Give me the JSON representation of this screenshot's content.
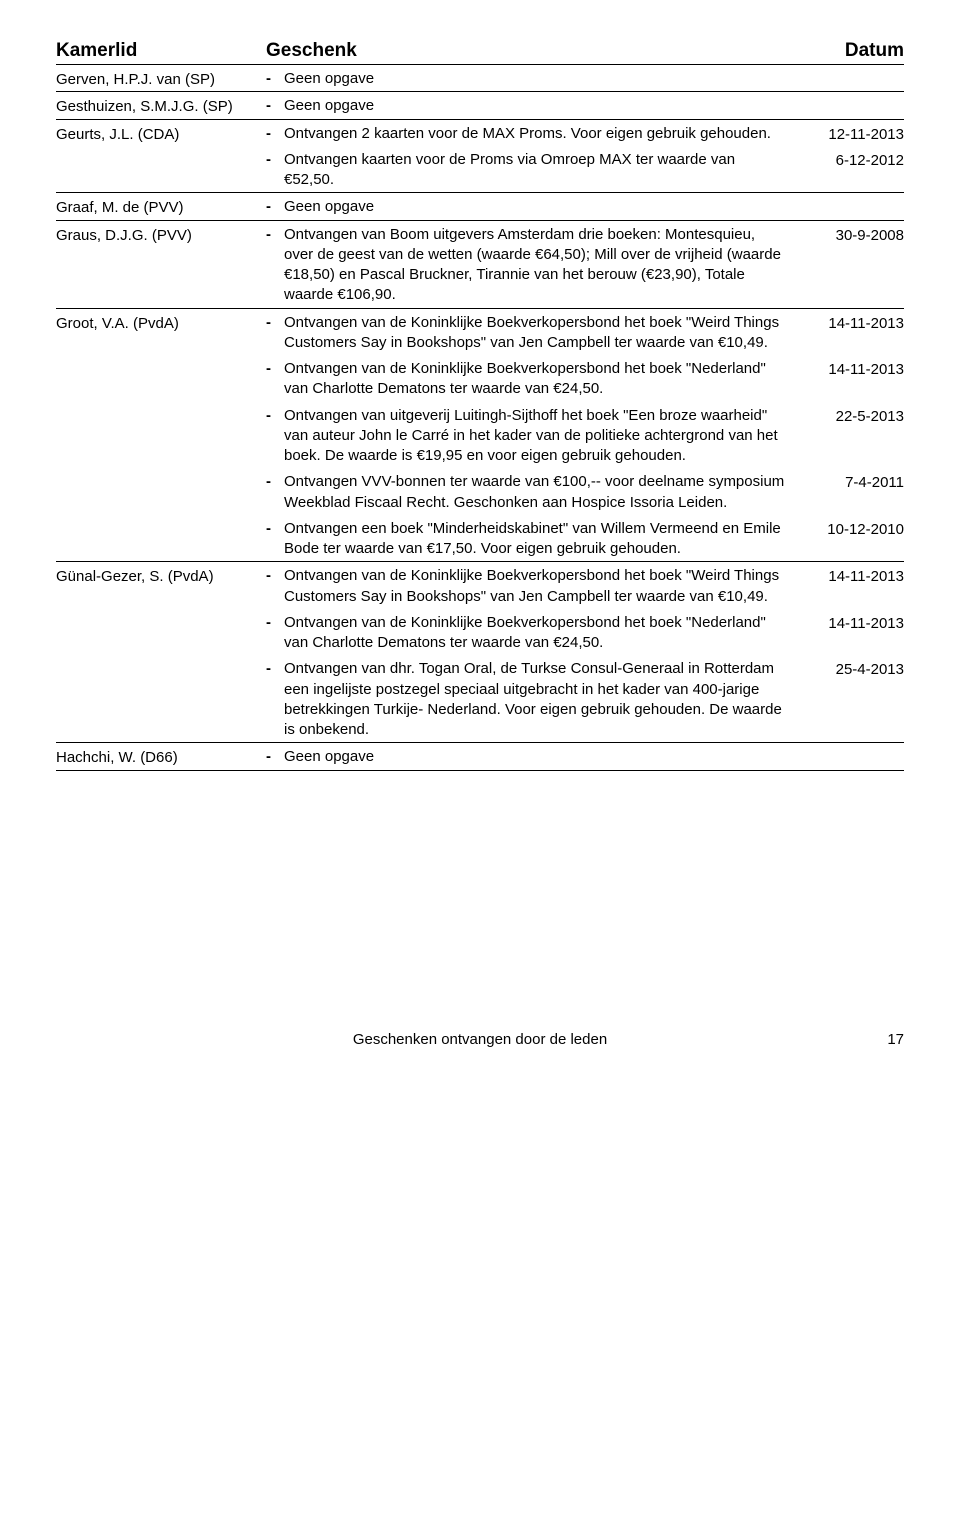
{
  "header": {
    "kamerlid": "Kamerlid",
    "geschenk": "Geschenk",
    "datum": "Datum"
  },
  "geen_opgave": "Geen opgave",
  "members": [
    {
      "name": "Gerven, H.P.J. van (SP)",
      "gifts": [
        {
          "text": "Geen opgave",
          "date": ""
        }
      ]
    },
    {
      "name": "Gesthuizen, S.M.J.G. (SP)",
      "gifts": [
        {
          "text": "Geen opgave",
          "date": ""
        }
      ]
    },
    {
      "name": "Geurts, J.L. (CDA)",
      "gifts": [
        {
          "text": "Ontvangen 2 kaarten voor de MAX Proms. Voor eigen gebruik gehouden.",
          "date": "12-11-2013"
        },
        {
          "text": "Ontvangen kaarten voor de Proms via Omroep MAX ter waarde van €52,50.",
          "date": "6-12-2012"
        }
      ]
    },
    {
      "name": "Graaf, M. de (PVV)",
      "gifts": [
        {
          "text": "Geen opgave",
          "date": ""
        }
      ]
    },
    {
      "name": "Graus, D.J.G. (PVV)",
      "gifts": [
        {
          "text": "Ontvangen van Boom uitgevers Amsterdam drie boeken: Montesquieu, over de geest van de wetten (waarde €64,50); Mill over de vrijheid (waarde €18,50) en Pascal Bruckner, Tirannie van het berouw (€23,90), Totale waarde €106,90.",
          "date": "30-9-2008"
        }
      ]
    },
    {
      "name": "Groot, V.A. (PvdA)",
      "gifts": [
        {
          "text": "Ontvangen van de Koninklijke Boekverkopersbond het boek \"Weird Things Customers Say in Bookshops\" van Jen Campbell ter waarde van €10,49.",
          "date": "14-11-2013"
        },
        {
          "text": "Ontvangen van de Koninklijke Boekverkopersbond het boek \"Nederland\" van Charlotte Dematons ter waarde van €24,50.",
          "date": "14-11-2013"
        },
        {
          "text": "Ontvangen van uitgeverij Luitingh-Sijthoff het boek \"Een broze waarheid\" van auteur John le Carré in het kader van de politieke achtergrond van het boek. De waarde is €19,95 en voor eigen gebruik gehouden.",
          "date": "22-5-2013"
        },
        {
          "text": "Ontvangen VVV-bonnen ter waarde van €100,-- voor deelname symposium Weekblad Fiscaal Recht. Geschonken aan Hospice Issoria Leiden.",
          "date": "7-4-2011"
        },
        {
          "text": "Ontvangen een boek \"Minderheidskabinet\" van Willem Vermeend en Emile Bode ter waarde van €17,50. Voor eigen gebruik gehouden.",
          "date": "10-12-2010"
        }
      ]
    },
    {
      "name": "Günal-Gezer, S. (PvdA)",
      "gifts": [
        {
          "text": "Ontvangen van de Koninklijke Boekverkopersbond het boek \"Weird Things Customers Say in Bookshops\" van Jen Campbell ter waarde van €10,49.",
          "date": "14-11-2013"
        },
        {
          "text": "Ontvangen van de Koninklijke Boekverkopersbond het boek \"Nederland\" van Charlotte Dematons ter waarde van €24,50.",
          "date": "14-11-2013"
        },
        {
          "text": "Ontvangen van dhr. Togan Oral, de Turkse Consul-Generaal in Rotterdam een ingelijste postzegel speciaal uitgebracht in het kader van 400-jarige betrekkingen Turkije- Nederland. Voor eigen gebruik gehouden. De waarde is onbekend.",
          "date": "25-4-2013"
        }
      ]
    },
    {
      "name": "Hachchi, W. (D66)",
      "gifts": [
        {
          "text": "Geen opgave",
          "date": ""
        }
      ]
    }
  ],
  "footer": {
    "title": "Geschenken ontvangen door de leden",
    "page": "17"
  }
}
